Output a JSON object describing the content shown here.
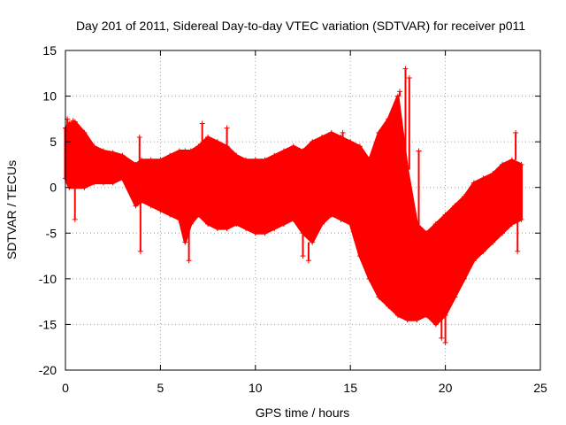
{
  "chart_data": {
    "type": "scatter",
    "title": "Day 201 of 2011, Sidereal Day-to-day VTEC variation (SDTVAR) for receiver p011",
    "xlabel": "GPS time / hours",
    "ylabel": "SDTVAR / TECUs",
    "xlim": [
      0,
      25
    ],
    "ylim": [
      -20,
      15
    ],
    "x_ticks": [
      "0",
      "5",
      "10",
      "15",
      "20",
      "25"
    ],
    "y_ticks": [
      "15",
      "10",
      "5",
      "0",
      "-5",
      "-10",
      "-15",
      "-20"
    ],
    "grid": true,
    "legend": "none",
    "marker": "+",
    "series_color": "#ff0000",
    "series": [
      {
        "name": "SDTVAR",
        "envelope": {
          "x": [
            0,
            0.2,
            0.5,
            1.0,
            1.5,
            2.0,
            2.5,
            3.0,
            3.7,
            4.0,
            4.5,
            5.0,
            5.5,
            6.0,
            6.3,
            6.6,
            7.0,
            7.5,
            8.0,
            8.5,
            9.0,
            9.5,
            10.0,
            10.5,
            11.0,
            11.5,
            12.0,
            12.5,
            13.0,
            13.5,
            14.0,
            14.5,
            15.0,
            15.5,
            16.0,
            16.5,
            17.0,
            17.5,
            18.0,
            18.5,
            19.0,
            19.5,
            20.0,
            20.5,
            21.0,
            21.5,
            22.0,
            22.5,
            23.0,
            23.5,
            24.0
          ],
          "upper": [
            6.5,
            7.0,
            7.2,
            6.0,
            4.5,
            4.0,
            3.8,
            3.5,
            2.5,
            3.0,
            3.0,
            3.0,
            3.5,
            4.0,
            4.0,
            4.0,
            4.5,
            5.5,
            5.0,
            4.5,
            3.5,
            3.0,
            3.0,
            3.0,
            3.5,
            4.0,
            4.5,
            4.0,
            5.0,
            5.5,
            6.0,
            5.5,
            5.0,
            4.5,
            3.0,
            6.0,
            7.5,
            10.0,
            2.0,
            -4.0,
            -5.0,
            -4.0,
            -3.0,
            -2.0,
            -1.0,
            0.5,
            1.0,
            1.5,
            2.5,
            3.0,
            2.5
          ],
          "lower": [
            1.0,
            0.0,
            0.0,
            0.0,
            0.5,
            0.5,
            0.5,
            1.0,
            -2.0,
            -1.5,
            -2.0,
            -2.5,
            -3.0,
            -3.5,
            -6.0,
            -4.0,
            -3.0,
            -4.0,
            -4.5,
            -4.5,
            -4.0,
            -4.5,
            -5.0,
            -5.0,
            -4.5,
            -4.0,
            -3.5,
            -5.0,
            -6.0,
            -4.0,
            -3.0,
            -3.5,
            -4.0,
            -7.5,
            -10.0,
            -12.0,
            -13.0,
            -14.0,
            -14.5,
            -14.5,
            -14.0,
            -15.0,
            -14.0,
            -12.0,
            -10.0,
            -8.0,
            -7.0,
            -6.0,
            -5.0,
            -4.0,
            -3.5
          ]
        },
        "spikes": [
          {
            "x": 0.1,
            "y": 7.5
          },
          {
            "x": 0.4,
            "y": 7.3
          },
          {
            "x": 0.5,
            "y": -3.5
          },
          {
            "x": 3.9,
            "y": 5.5
          },
          {
            "x": 3.95,
            "y": -7.0
          },
          {
            "x": 6.5,
            "y": -8.0
          },
          {
            "x": 7.2,
            "y": 7.0
          },
          {
            "x": 8.5,
            "y": 6.5
          },
          {
            "x": 12.5,
            "y": -7.5
          },
          {
            "x": 12.8,
            "y": -8.0
          },
          {
            "x": 14.6,
            "y": 6.0
          },
          {
            "x": 17.2,
            "y": 8.0
          },
          {
            "x": 17.6,
            "y": 10.5
          },
          {
            "x": 17.9,
            "y": 13.0
          },
          {
            "x": 18.1,
            "y": 12.0
          },
          {
            "x": 18.6,
            "y": 4.0
          },
          {
            "x": 19.8,
            "y": -16.5
          },
          {
            "x": 20.0,
            "y": -17.0
          },
          {
            "x": 23.7,
            "y": 6.0
          },
          {
            "x": 23.8,
            "y": -7.0
          }
        ]
      }
    ]
  }
}
